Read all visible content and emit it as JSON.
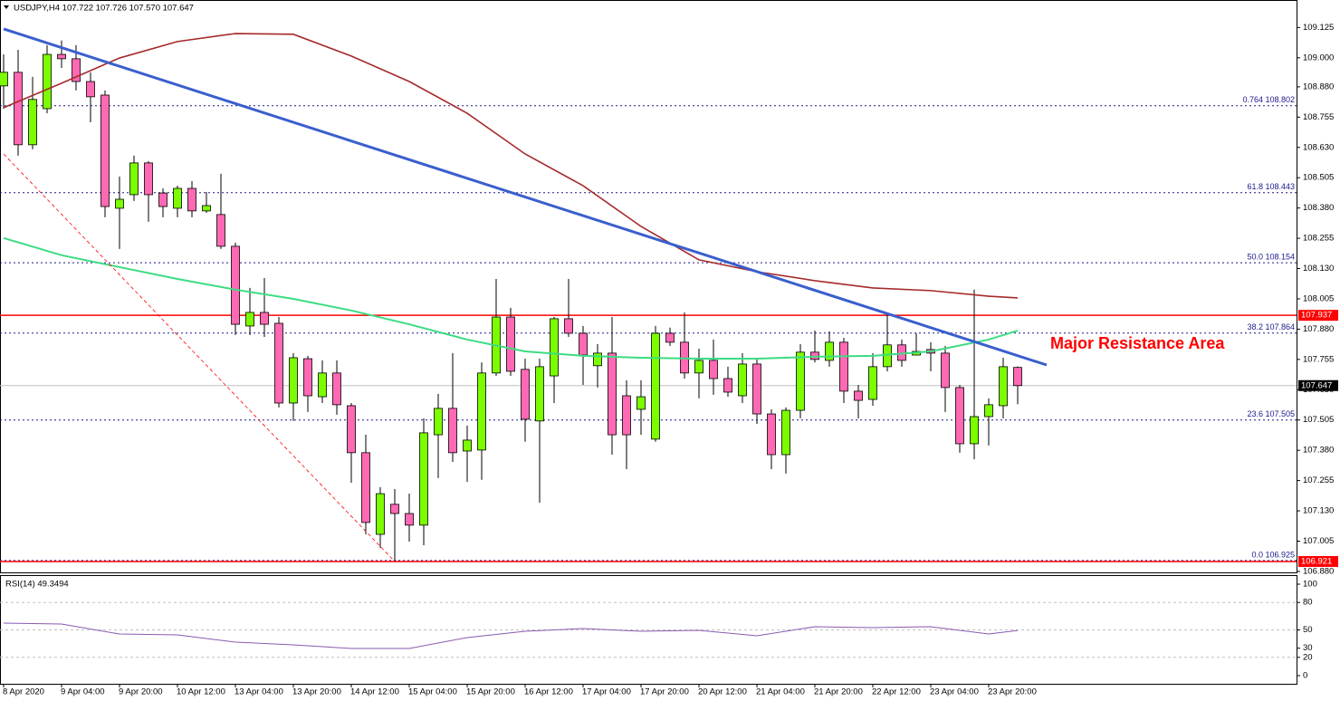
{
  "chart_data": [
    {
      "type": "candlestick",
      "title": "USDJPY,H4  107.722 107.726 107.570 107.647",
      "categories": [
        "8 Apr 2020",
        null,
        null,
        null,
        "9 Apr 04:00",
        null,
        null,
        null,
        "9 Apr 20:00",
        null,
        null,
        null,
        "10 Apr 12:00",
        null,
        null,
        null,
        "13 Apr 04:00",
        null,
        null,
        null,
        "13 Apr 20:00",
        null,
        null,
        null,
        "14 Apr 12:00",
        null,
        null,
        null,
        "15 Apr 04:00",
        null,
        null,
        null,
        "15 Apr 20:00",
        null,
        null,
        null,
        "16 Apr 12:00",
        null,
        null,
        null,
        "17 Apr 04:00",
        null,
        null,
        null,
        "17 Apr 20:00",
        null,
        null,
        null,
        "20 Apr 12:00",
        null,
        null,
        null,
        "21 Apr 04:00",
        null,
        null,
        null,
        "21 Apr 20:00",
        null,
        null,
        null,
        "22 Apr 12:00",
        null,
        null,
        null,
        "23 Apr 04:00",
        null,
        null,
        null,
        "23 Apr 20:00",
        null,
        null
      ],
      "open": [
        108.884,
        108.94,
        108.641,
        108.79,
        109.014,
        108.996,
        108.902,
        108.846,
        108.379,
        108.435,
        108.566,
        108.442,
        108.379,
        108.461,
        108.368,
        108.353,
        108.222,
        107.893,
        107.949,
        107.904,
        107.575,
        107.758,
        107.601,
        107.699,
        107.564,
        107.37,
        107.033,
        107.157,
        107.119,
        107.071,
        107.444,
        107.553,
        107.377,
        107.381,
        107.699,
        107.93,
        107.714,
        107.501,
        107.687,
        107.923,
        107.863,
        107.729,
        107.781,
        107.605,
        107.549,
        107.426,
        107.863,
        107.826,
        107.699,
        107.751,
        107.676,
        107.605,
        107.736,
        107.53,
        107.362,
        107.545,
        107.785,
        107.751,
        107.826,
        107.624,
        107.59,
        107.725,
        107.815,
        107.773,
        107.796,
        107.781,
        107.639,
        107.407,
        107.519,
        107.564,
        107.722
      ],
      "high": [
        109.014,
        109.033,
        108.921,
        109.052,
        109.071,
        109.052,
        108.94,
        108.865,
        108.51,
        108.596,
        108.573,
        108.461,
        108.472,
        108.491,
        108.446,
        108.521,
        108.237,
        108.05,
        108.091,
        107.93,
        107.781,
        107.77,
        107.751,
        107.751,
        107.575,
        107.444,
        107.228,
        107.22,
        107.201,
        107.512,
        107.613,
        107.781,
        107.482,
        107.743,
        108.087,
        107.968,
        107.758,
        107.758,
        107.93,
        108.087,
        107.893,
        107.818,
        107.93,
        107.669,
        107.669,
        107.893,
        107.886,
        107.949,
        107.8,
        107.837,
        107.725,
        107.781,
        107.762,
        107.549,
        107.557,
        107.818,
        107.874,
        107.871,
        107.844,
        107.65,
        107.781,
        107.938,
        107.837,
        107.863,
        107.826,
        107.811,
        107.65,
        108.043,
        107.594,
        107.762,
        107.726
      ],
      "low": [
        108.79,
        108.596,
        108.622,
        108.771,
        108.958,
        108.865,
        108.734,
        108.342,
        108.211,
        108.409,
        108.323,
        108.342,
        108.342,
        108.342,
        108.36,
        108.211,
        107.856,
        107.856,
        107.848,
        107.557,
        107.501,
        107.538,
        107.575,
        107.527,
        107.246,
        107.033,
        106.977,
        106.921,
        107.003,
        106.988,
        107.265,
        107.332,
        107.25,
        107.258,
        107.687,
        107.687,
        107.415,
        107.164,
        107.575,
        107.848,
        107.65,
        107.639,
        107.362,
        107.302,
        107.444,
        107.415,
        107.811,
        107.676,
        107.594,
        107.609,
        107.601,
        107.575,
        107.489,
        107.302,
        107.284,
        107.512,
        107.743,
        107.725,
        107.575,
        107.512,
        107.564,
        107.706,
        107.725,
        107.773,
        107.706,
        107.538,
        107.37,
        107.343,
        107.4,
        107.512,
        107.57
      ],
      "close": [
        108.94,
        108.641,
        108.828,
        109.014,
        108.996,
        108.902,
        108.839,
        108.386,
        108.416,
        108.566,
        108.435,
        108.386,
        108.461,
        108.368,
        108.39,
        108.222,
        107.9,
        107.949,
        107.9,
        107.575,
        107.762,
        107.605,
        107.699,
        107.568,
        107.37,
        107.082,
        107.201,
        107.119,
        107.071,
        107.452,
        107.553,
        107.37,
        107.422,
        107.699,
        107.93,
        107.706,
        107.508,
        107.725,
        107.923,
        107.863,
        107.773,
        107.781,
        107.444,
        107.444,
        107.601,
        107.863,
        107.826,
        107.699,
        107.751,
        107.676,
        107.62,
        107.736,
        107.53,
        107.362,
        107.545,
        107.785,
        107.755,
        107.826,
        107.624,
        107.586,
        107.725,
        107.815,
        107.751,
        107.788,
        107.781,
        107.639,
        107.407,
        107.519,
        107.568,
        107.725,
        107.647
      ],
      "up_color": "#7cfc00",
      "down_color": "#ff69b4",
      "ylim": [
        106.876,
        109.231
      ],
      "yticks": [
        109.125,
        {
          "value": 109,
          "label": "109.000"
        },
        {
          "value": 108.88,
          "label": "108.880"
        },
        108.755,
        {
          "value": 108.63,
          "label": "108.630"
        },
        108.505,
        {
          "value": 108.38,
          "label": "108.380"
        },
        108.255,
        {
          "value": 108.13,
          "label": "108.130"
        },
        108.005,
        {
          "value": 107.88,
          "label": "107.880"
        },
        107.755,
        {
          "value": 107.63,
          "label": "107.630"
        },
        107.505,
        {
          "value": 107.38,
          "label": "107.380"
        },
        107.255,
        {
          "value": 107.13,
          "label": "107.130"
        },
        107.005,
        {
          "value": 106.88,
          "label": "106.880"
        }
      ],
      "overlays": [
        {
          "color": "#a52a2a",
          "x": [
            0,
            4,
            8,
            12,
            16,
            20,
            24,
            28,
            32,
            36,
            40,
            44,
            48,
            52,
            56,
            60,
            64,
            68,
            70
          ],
          "values": [
            108.794,
            108.895,
            108.999,
            109.067,
            109.1,
            109.097,
            109.007,
            108.902,
            108.771,
            108.603,
            108.472,
            108.304,
            108.166,
            108.117,
            108.08,
            108.05,
            108.039,
            108.016,
            108.009
          ]
        },
        {
          "color": "#3cdc82",
          "x": [
            0,
            4,
            8,
            12,
            16,
            20,
            24,
            28,
            32,
            36,
            40,
            44,
            48,
            52,
            56,
            60,
            64,
            68,
            70
          ],
          "values": [
            108.256,
            108.185,
            108.136,
            108.087,
            108.043,
            108.005,
            107.957,
            107.9,
            107.837,
            107.788,
            107.77,
            107.762,
            107.758,
            107.758,
            107.766,
            107.77,
            107.788,
            107.837,
            107.874
          ]
        },
        {
          "color": "#3a5fcd",
          "x": [
            0,
            72
          ],
          "values": [
            109.119,
            107.732
          ]
        },
        {
          "color": "#ff0000",
          "style": "dashed",
          "x": [
            0,
            27
          ],
          "values": [
            108.603,
            106.921
          ]
        }
      ],
      "fib_levels": [
        {
          "label": "0.764 108.802",
          "value": 108.802
        },
        {
          "label": "61.8 108.443",
          "value": 108.443
        },
        {
          "label": "50.0 108.154",
          "value": 108.154
        },
        {
          "label": "38.2 107.864",
          "value": 107.864
        },
        {
          "label": "23.6 107.505",
          "value": 107.505
        },
        {
          "label": "0.0 106.925",
          "value": 106.925
        }
      ],
      "price_lines": [
        {
          "value": 107.937,
          "color": "#ff0000"
        },
        {
          "value": 106.921,
          "color": "#ff0000"
        },
        {
          "value": 107.647,
          "color": "#000000"
        }
      ],
      "annotation": {
        "text": "Major Resistance Area",
        "color": "#ff0000"
      }
    },
    {
      "type": "line",
      "title": "RSI(14) 49.3494",
      "color": "#8a5ab0",
      "x": [
        0,
        4,
        8,
        12,
        16,
        20,
        24,
        28,
        32,
        36,
        40,
        44,
        48,
        52,
        56,
        60,
        64,
        68,
        70
      ],
      "values": [
        57.4,
        56.4,
        45.5,
        44.6,
        36.6,
        33.7,
        29.7,
        29.7,
        41.6,
        48.5,
        51.5,
        48.5,
        49.5,
        43.6,
        53.5,
        52.5,
        53.5,
        45.5,
        49.3494
      ],
      "ylim": [
        -8.9,
        108.9
      ],
      "yticks": [
        100,
        80,
        50,
        30,
        20,
        0
      ],
      "levels": [
        80,
        50,
        20
      ]
    }
  ]
}
